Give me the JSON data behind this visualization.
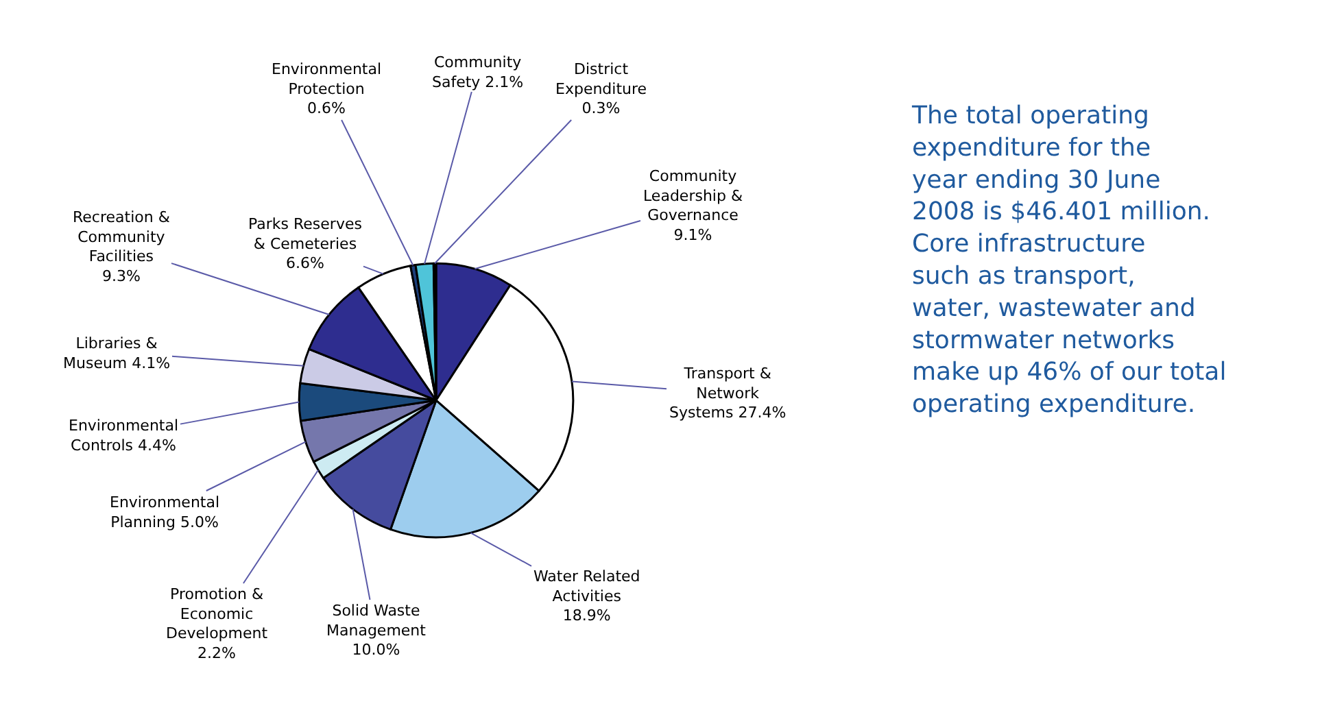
{
  "chart_data": {
    "type": "pie",
    "categories": [
      "Community Leadership & Governance",
      "Transport & Network Systems",
      "Water Related Activities",
      "Solid Waste Management",
      "Promotion & Economic Development",
      "Environmental Planning",
      "Environmental Controls",
      "Libraries & Museum",
      "Recreation & Community Facilities",
      "Parks Reserves & Cemeteries",
      "Environmental Protection",
      "Community Safety",
      "District Expenditure"
    ],
    "values": [
      9.1,
      27.4,
      18.9,
      10.0,
      2.2,
      5.0,
      4.4,
      4.1,
      9.3,
      6.6,
      0.6,
      2.1,
      0.3
    ],
    "colors": [
      "#2e2d8f",
      "#ffffff",
      "#9dcdee",
      "#454b9e",
      "#cdebf2",
      "#7577ac",
      "#1b4a7c",
      "#cbcbe6",
      "#2e2d8f",
      "#ffffff",
      "#1d3f7a",
      "#4fc4d9",
      "#000000"
    ],
    "value_labels": [
      "9.1%",
      "27.4%",
      "18.9%",
      "10.0%",
      "2.2%",
      "5.0%",
      "4.4%",
      "4.1%",
      "9.3%",
      "6.6%",
      "0.6%",
      "2.1%",
      "0.3%"
    ],
    "legend": false,
    "annotations": [
      "The total operating\nexpenditure for the\nyear ending 30 June\n2008 is $46.401 million.\nCore infrastructure\nsuch as transport,\nwater, wastewater and\nstormwater networks\nmake up 46% of our total\noperating expenditure."
    ]
  }
}
